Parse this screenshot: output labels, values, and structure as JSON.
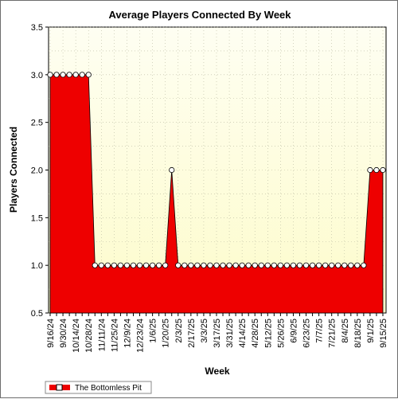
{
  "chart_data": {
    "type": "area",
    "title": "Average Players Connected By Week",
    "xlabel": "Week",
    "ylabel": "Players Connected",
    "ylim": [
      0.5,
      3.5
    ],
    "yticks": [
      "0.5",
      "1.0",
      "1.5",
      "2.0",
      "2.5",
      "3.0",
      "3.5"
    ],
    "grid": true,
    "legend_position": "bottom-left",
    "x": [
      "9/16/24",
      "9/23/24",
      "9/30/24",
      "10/7/24",
      "10/14/24",
      "10/21/24",
      "10/28/24",
      "11/4/24",
      "11/11/24",
      "11/18/24",
      "11/25/24",
      "12/2/24",
      "12/9/24",
      "12/16/24",
      "12/23/24",
      "12/30/24",
      "1/6/25",
      "1/13/25",
      "1/20/25",
      "1/27/25",
      "2/3/25",
      "2/10/25",
      "2/17/25",
      "2/24/25",
      "3/3/25",
      "3/10/25",
      "3/17/25",
      "3/24/25",
      "3/31/25",
      "4/7/25",
      "4/14/25",
      "4/21/25",
      "4/28/25",
      "5/5/25",
      "5/12/25",
      "5/19/25",
      "5/26/25",
      "6/2/25",
      "6/9/25",
      "6/16/25",
      "6/23/25",
      "6/30/25",
      "7/7/25",
      "7/14/25",
      "7/21/25",
      "7/28/25",
      "8/4/25",
      "8/11/25",
      "8/18/25",
      "8/25/25",
      "9/1/25",
      "9/8/25",
      "9/15/25"
    ],
    "x_tick_labels": [
      "9/16/24",
      "9/30/24",
      "10/14/24",
      "10/28/24",
      "11/11/24",
      "11/25/24",
      "12/9/24",
      "12/23/24",
      "1/6/25",
      "1/20/25",
      "2/3/25",
      "2/17/25",
      "3/3/25",
      "3/17/25",
      "3/31/25",
      "4/14/25",
      "4/28/25",
      "5/12/25",
      "5/26/25",
      "6/9/25",
      "6/23/25",
      "7/7/25",
      "7/21/25",
      "8/4/25",
      "8/18/25",
      "9/1/25",
      "9/15/25"
    ],
    "series": [
      {
        "name": "The Bottomless Pit",
        "color": "#ee0000",
        "values": [
          3,
          3,
          3,
          3,
          3,
          3,
          3,
          1,
          1,
          1,
          1,
          1,
          1,
          1,
          1,
          1,
          1,
          1,
          1,
          2,
          1,
          1,
          1,
          1,
          1,
          1,
          1,
          1,
          1,
          1,
          1,
          1,
          1,
          1,
          1,
          1,
          1,
          1,
          1,
          1,
          1,
          1,
          1,
          1,
          1,
          1,
          1,
          1,
          1,
          1,
          2,
          2,
          2
        ]
      }
    ]
  },
  "colors": {
    "plot_background_top": "#fefef0",
    "plot_background_bottom": "#fdfcc8",
    "series_fill": "#ee0000",
    "marker_fill": "#ffffff"
  }
}
